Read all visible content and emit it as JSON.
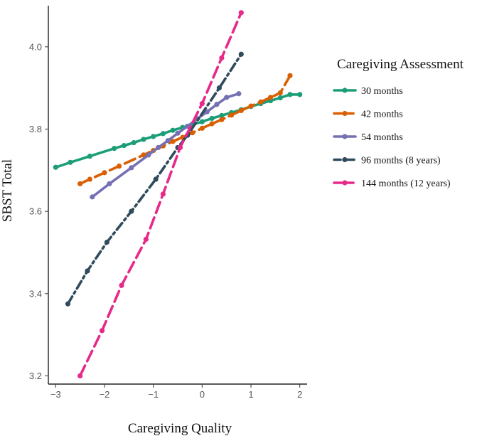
{
  "chart_data": {
    "type": "line",
    "xlabel": "Caregiving Quality",
    "ylabel": "SBST Total",
    "xlim": [
      -3.15,
      2.15
    ],
    "ylim": [
      3.18,
      4.1
    ],
    "x_ticks": [
      -3,
      -2,
      -1,
      0,
      1,
      2
    ],
    "x_tick_labels": [
      "−3",
      "−2",
      "−1",
      "0",
      "1",
      "2"
    ],
    "y_ticks": [
      3.2,
      3.4,
      3.6,
      3.8,
      4.0
    ],
    "y_tick_labels": [
      "3.2",
      "3.4",
      "3.6",
      "3.8",
      "4.0"
    ],
    "grid": false,
    "legend_title": "Caregiving Assessment",
    "legend_position": "right",
    "series": [
      {
        "name": "30 months",
        "color": "#1b9e77",
        "dash": "solid",
        "x": [
          -3.0,
          -2.7,
          -2.3,
          -1.8,
          -1.6,
          -1.4,
          -1.2,
          -1.0,
          -0.8,
          -0.6,
          -0.4,
          -0.2,
          0.0,
          0.2,
          0.4,
          0.6,
          0.8,
          1.0,
          1.2,
          1.4,
          1.6,
          1.8,
          2.0
        ],
        "y": [
          3.707,
          3.719,
          3.734,
          3.753,
          3.76,
          3.767,
          3.775,
          3.782,
          3.789,
          3.797,
          3.804,
          3.811,
          3.818,
          3.826,
          3.833,
          3.84,
          3.847,
          3.855,
          3.862,
          3.869,
          3.876,
          3.884,
          3.884
        ]
      },
      {
        "name": "42 months",
        "color": "#d95f02",
        "dash": "long-dash",
        "x": [
          -2.5,
          -2.3,
          -2.0,
          -1.7,
          -1.2,
          -1.0,
          -0.8,
          -0.6,
          -0.4,
          -0.2,
          0.0,
          0.2,
          0.4,
          0.6,
          0.8,
          1.0,
          1.2,
          1.4,
          1.6,
          1.8
        ],
        "y": [
          3.667,
          3.678,
          3.694,
          3.71,
          3.737,
          3.748,
          3.759,
          3.77,
          3.78,
          3.791,
          3.802,
          3.813,
          3.823,
          3.834,
          3.845,
          3.856,
          3.866,
          3.877,
          3.888,
          3.93
        ]
      },
      {
        "name": "54 months",
        "color": "#7570b3",
        "dash": "solid",
        "x": [
          -2.25,
          -1.9,
          -1.45,
          -1.1,
          -0.9,
          -0.7,
          -0.5,
          -0.3,
          -0.1,
          0.1,
          0.3,
          0.5,
          0.75
        ],
        "y": [
          3.635,
          3.667,
          3.706,
          3.737,
          3.755,
          3.772,
          3.79,
          3.807,
          3.825,
          3.842,
          3.86,
          3.877,
          3.886
        ]
      },
      {
        "name": "96 months (8 years)",
        "color": "#2f4b5c",
        "dash": "dash-dot",
        "x": [
          -2.75,
          -2.35,
          -1.95,
          -1.45,
          -0.95,
          -0.5,
          -0.3,
          0.35,
          0.8
        ],
        "y": [
          3.375,
          3.455,
          3.525,
          3.6,
          3.678,
          3.755,
          3.785,
          3.9,
          3.982
        ]
      },
      {
        "name": "144 months (12 years)",
        "color": "#e7298a",
        "dash": "long-dash",
        "x": [
          -2.5,
          -2.05,
          -1.65,
          -1.15,
          -0.8,
          -0.45,
          0.0,
          0.4,
          0.8
        ],
        "y": [
          3.2,
          3.31,
          3.42,
          3.532,
          3.642,
          3.755,
          3.862,
          3.973,
          4.083
        ]
      }
    ]
  }
}
